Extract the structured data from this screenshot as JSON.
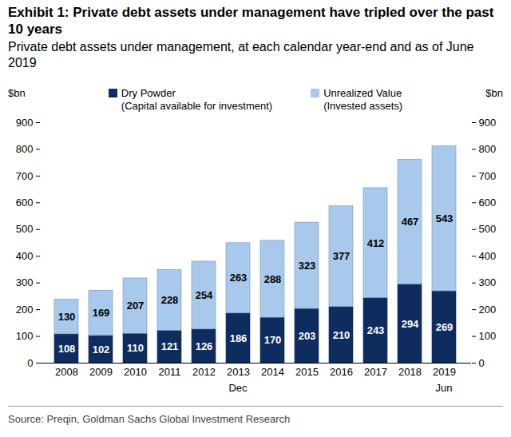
{
  "chart_data": {
    "type": "bar",
    "title": "Exhibit 1: Private debt assets under management have tripled over the past 10 years",
    "subtitle": "Private debt assets under management, at each calendar year-end and as of June 2019",
    "source": "Source: Preqin, Goldman Sachs Global Investment Research",
    "y_label": "$bn",
    "y2_label": "$bn",
    "categories": [
      "2008",
      "2009",
      "2010",
      "2011",
      "2012",
      "2013",
      "2014",
      "2015",
      "2016",
      "2017",
      "2018",
      "2019"
    ],
    "period_labels": [
      {
        "label": "Dec",
        "from": "2008",
        "to": "2018"
      },
      {
        "label": "Jun",
        "from": "2019",
        "to": "2019"
      }
    ],
    "series": [
      {
        "name": "Dry Powder (Capital available for investment)",
        "color": "#0e2d5e",
        "values": [
          108,
          102,
          110,
          121,
          126,
          186,
          170,
          203,
          210,
          243,
          294,
          269
        ]
      },
      {
        "name": "Unrealized Value (Invested assets)",
        "color": "#a8c9ec",
        "values": [
          130,
          169,
          207,
          228,
          254,
          263,
          288,
          323,
          377,
          412,
          467,
          543
        ]
      }
    ],
    "stacked": true,
    "data_labels": true,
    "ylim": [
      0,
      900
    ],
    "yticks": [
      0,
      100,
      200,
      300,
      400,
      500,
      600,
      700,
      800,
      900
    ],
    "y2lim": [
      0,
      900
    ],
    "y2ticks": [
      0,
      100,
      200,
      300,
      400,
      500,
      600,
      700,
      800,
      900
    ],
    "legend": "top"
  }
}
